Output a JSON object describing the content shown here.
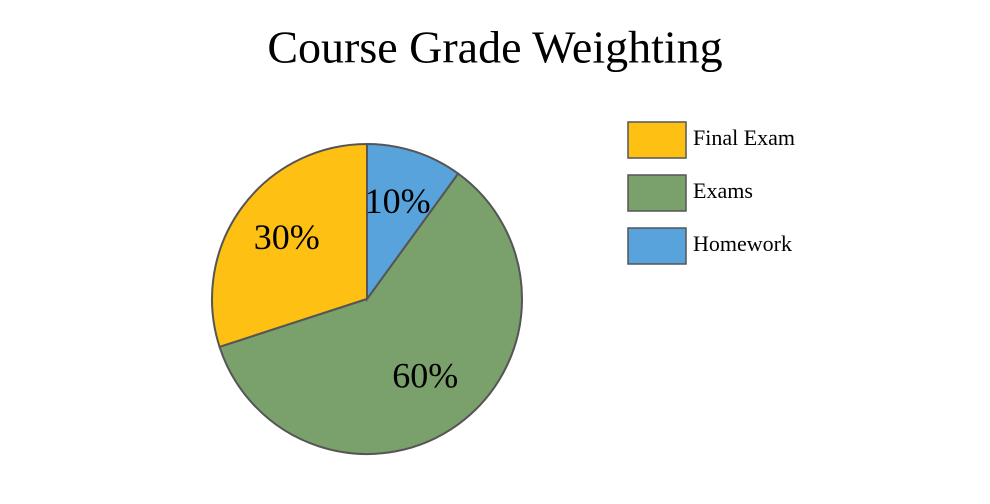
{
  "chart_data": {
    "type": "pie",
    "title": "Course Grade Weighting",
    "categories": [
      "Final Exam",
      "Exams",
      "Homework"
    ],
    "values": [
      30,
      60,
      10
    ],
    "value_labels": [
      "30%",
      "60%",
      "10%"
    ],
    "colors": [
      "#fdc013",
      "#7aa16b",
      "#58a3db"
    ],
    "legend": "right"
  }
}
